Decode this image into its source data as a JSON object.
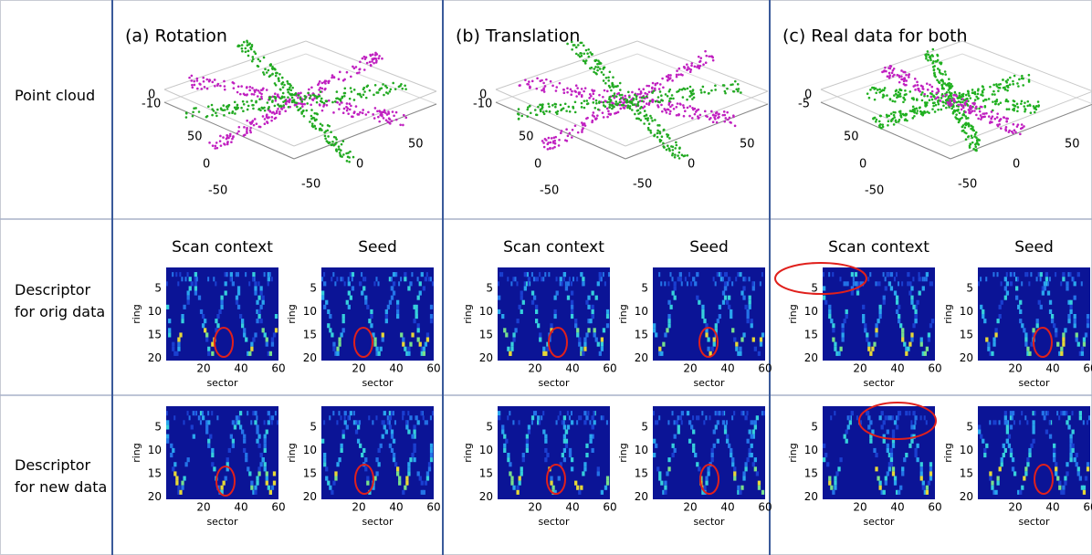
{
  "row_labels": [
    "Point cloud",
    "Descriptor for orig data",
    "Descriptor for new data"
  ],
  "columns": [
    {
      "title": "(a) Rotation",
      "z_ticks": [
        "0",
        "-10"
      ],
      "left_ticks": [
        "50",
        "0",
        "-50"
      ],
      "right_ticks": [
        "50",
        "0",
        "-50"
      ],
      "descriptors": [
        "Scan context",
        "Seed"
      ]
    },
    {
      "title": "(b) Translation",
      "z_ticks": [
        "0",
        "-10"
      ],
      "left_ticks": [
        "50",
        "0",
        "-50"
      ],
      "right_ticks": [
        "50",
        "0",
        "-50"
      ],
      "descriptors": [
        "Scan context",
        "Seed"
      ]
    },
    {
      "title": "(c) Real data for both",
      "z_ticks": [
        "0",
        "-5"
      ],
      "left_ticks": [
        "50",
        "0",
        "-50"
      ],
      "right_ticks": [
        "50",
        "0",
        "-50"
      ],
      "descriptors": [
        "Scan context",
        "Seed"
      ]
    }
  ],
  "descriptor_axes": {
    "y_label": "ring",
    "y_ticks": [
      "5",
      "10",
      "15",
      "20"
    ],
    "x_label": "sector",
    "x_ticks": [
      "20",
      "40",
      "60"
    ]
  }
}
